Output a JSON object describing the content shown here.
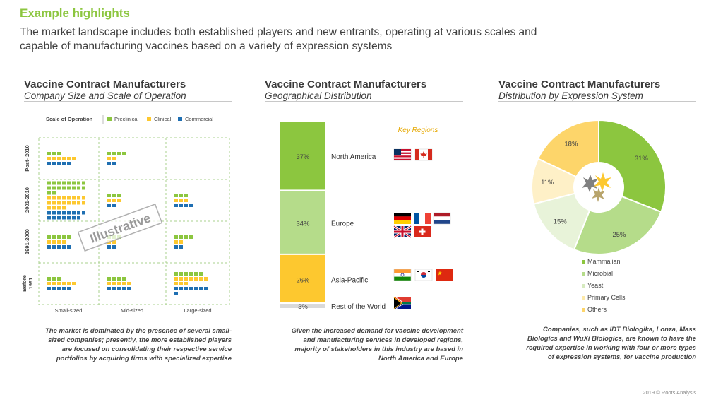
{
  "header": {
    "title": "Example highlights",
    "subtitle_line1": "The market landscape includes both established players and new entrants, operating at various scales and",
    "subtitle_line2": "capable of manufacturing vaccines based on a variety of expression systems"
  },
  "panels": [
    {
      "title": "Vaccine Contract Manufacturers",
      "subtitle": "Company Size and Scale of Operation",
      "note_lines": [
        "The market is dominated by the presence of several small-",
        "sized companies; presently, the more established players",
        "are focused on consolidating their respective service",
        "portfolios by acquiring firms with specialized expertise"
      ]
    },
    {
      "title": "Vaccine Contract Manufacturers",
      "subtitle": "Geographical Distribution",
      "note_lines": [
        "Given the increased demand for vaccine development",
        "and manufacturing services in developed regions,",
        "majority of stakeholders in this industry are based in",
        "North America and Europe"
      ]
    },
    {
      "title": "Vaccine Contract Manufacturers",
      "subtitle": "Distribution by Expression System",
      "note_lines": [
        "Companies, such as IDT Biologika, Lonza, Mass",
        "Biologics and WuXi Biologics, are known to have the",
        "required expertise in working with four or more types",
        "of expression systems, for vaccine production"
      ]
    }
  ],
  "colors": {
    "preclinical": "#8cc63f",
    "clinical": "#fdc82f",
    "commercial": "#1f6fb2",
    "accent": "#8cc63f"
  },
  "chart_data": [
    {
      "type": "scatter",
      "legend_title": "Scale of Operation",
      "legend": [
        "Preclinical",
        "Clinical",
        "Commercial"
      ],
      "x_categories": [
        "Small-sized",
        "Mid-sized",
        "Large-sized"
      ],
      "y_categories": [
        "Post- 2010",
        "2001-2010",
        "1991-2000",
        "Before 1991"
      ],
      "watermark": "Illustrative",
      "cells": [
        {
          "row": 0,
          "col": 0,
          "preclinical": 3,
          "clinical": 6,
          "commercial": 5
        },
        {
          "row": 0,
          "col": 1,
          "preclinical": 4,
          "clinical": 2,
          "commercial": 2
        },
        {
          "row": 0,
          "col": 2,
          "preclinical": 0,
          "clinical": 0,
          "commercial": 0
        },
        {
          "row": 1,
          "col": 0,
          "preclinical": 18,
          "clinical": 20,
          "commercial": 15
        },
        {
          "row": 1,
          "col": 1,
          "preclinical": 3,
          "clinical": 3,
          "commercial": 2
        },
        {
          "row": 1,
          "col": 2,
          "preclinical": 3,
          "clinical": 3,
          "commercial": 4
        },
        {
          "row": 2,
          "col": 0,
          "preclinical": 5,
          "clinical": 4,
          "commercial": 5
        },
        {
          "row": 2,
          "col": 1,
          "preclinical": 3,
          "clinical": 2,
          "commercial": 2
        },
        {
          "row": 2,
          "col": 2,
          "preclinical": 4,
          "clinical": 2,
          "commercial": 2
        },
        {
          "row": 3,
          "col": 0,
          "preclinical": 3,
          "clinical": 6,
          "commercial": 5
        },
        {
          "row": 3,
          "col": 1,
          "preclinical": 4,
          "clinical": 5,
          "commercial": 5
        },
        {
          "row": 3,
          "col": 2,
          "preclinical": 6,
          "clinical": 10,
          "commercial": 8
        }
      ]
    },
    {
      "type": "bar",
      "stacked": true,
      "legend_title": "Key Regions",
      "categories": [
        "North America",
        "Europe",
        "Asia-Pacific",
        "Rest of the World"
      ],
      "values": [
        37,
        34,
        26,
        3
      ],
      "labels": [
        "37%",
        "34%",
        "26%",
        "3%"
      ],
      "colors": [
        "#8cc63f",
        "#b5dc8a",
        "#fdc82f",
        "#d9d9d9"
      ],
      "flags": [
        [
          "us-flag-icon",
          "canada-flag-icon"
        ],
        [
          "germany-flag-icon",
          "france-flag-icon",
          "netherlands-flag-icon",
          "uk-flag-icon",
          "switzerland-flag-icon"
        ],
        [
          "india-flag-icon",
          "south-korea-flag-icon",
          "china-flag-icon"
        ],
        [
          "south-africa-flag-icon"
        ]
      ]
    },
    {
      "type": "pie",
      "donut": true,
      "categories": [
        "Mammalian",
        "Microbial",
        "Yeast",
        "Primary Cells",
        "Others"
      ],
      "values": [
        31,
        25,
        15,
        11,
        18
      ],
      "labels": [
        "31%",
        "25%",
        "15%",
        "11%",
        "18%"
      ],
      "colors": [
        "#8cc63f",
        "#b5dc8a",
        "#e8f3d9",
        "#fef0c7",
        "#fdd56a"
      ],
      "legend_position": "bottom"
    }
  ],
  "footer": "2019 © Roots Analysis"
}
